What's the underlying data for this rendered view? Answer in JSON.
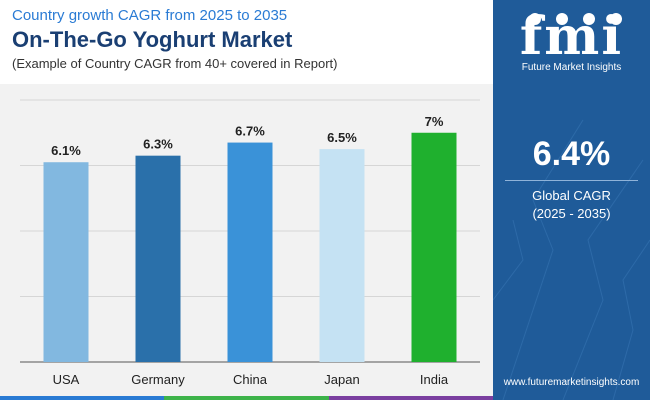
{
  "header": {
    "subtitle": "Country growth CAGR from 2025 to 2035",
    "title": "On-The-Go Yoghurt Market",
    "note": "(Example of Country CAGR from 40+ covered in Report)"
  },
  "sidebar": {
    "logo_mark": "fmi",
    "logo_text": "Future Market Insights",
    "global_value": "6.4%",
    "global_label_line1": "Global CAGR",
    "global_label_line2": "(2025 - 2035)",
    "url": "www.futuremarketinsights.com"
  },
  "colors": {
    "title": "#1a3f73",
    "subtitle": "#2a7bd4",
    "sidebar_bg": "#1f5b99",
    "bottom_bar": [
      "#2a7bd4",
      "#3db34a",
      "#7b3fa0"
    ]
  },
  "chart_data": {
    "type": "bar",
    "categories": [
      "USA",
      "Germany",
      "China",
      "Japan",
      "India"
    ],
    "values": [
      6.1,
      6.3,
      6.7,
      6.5,
      7.0
    ],
    "data_labels": [
      "6.1%",
      "6.3%",
      "6.7%",
      "6.5%",
      "7%"
    ],
    "bar_colors": [
      "#82b8e0",
      "#2a70aa",
      "#3a92d8",
      "#c5e2f3",
      "#1fb02e"
    ],
    "ylim": [
      0,
      8
    ],
    "grid": true,
    "gridline_values": [
      2,
      4,
      6,
      8
    ],
    "legend": "none"
  }
}
